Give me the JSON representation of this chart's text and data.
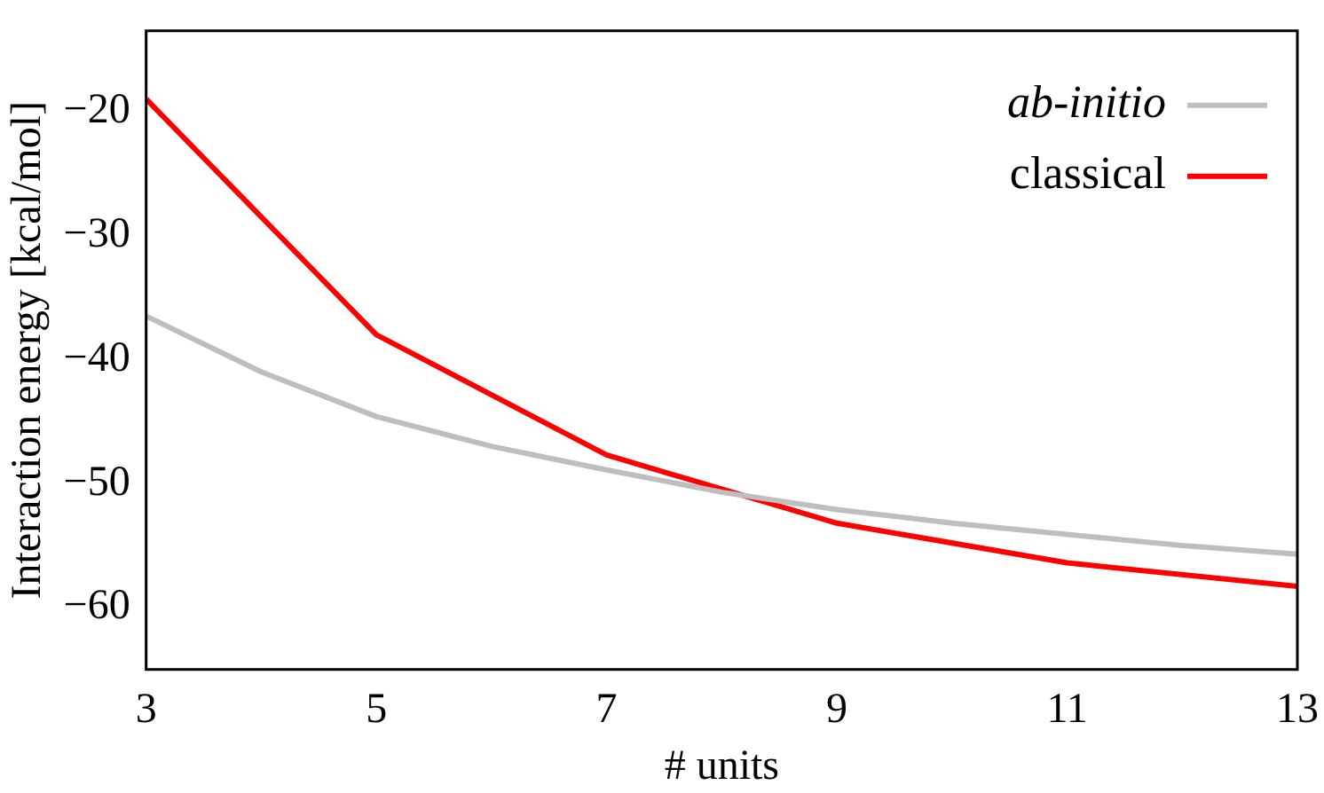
{
  "chart_data": {
    "type": "line",
    "xlabel": "# units",
    "ylabel": "Interaction energy [kcal/mol]",
    "xlim": [
      3,
      13
    ],
    "xticks": [
      3,
      5,
      7,
      9,
      11,
      13
    ],
    "ylim": [
      -65,
      -13.5
    ],
    "yticks": [
      {
        "value": -20,
        "label": "−20"
      },
      {
        "value": -30,
        "label": "−30"
      },
      {
        "value": -40,
        "label": "−40"
      },
      {
        "value": -50,
        "label": "−50"
      },
      {
        "value": -60,
        "label": "−60"
      }
    ],
    "grid": false,
    "legend": "top right",
    "marker": "none",
    "line_style": "solid",
    "series": [
      {
        "name": "ab-initio",
        "color": "#bebebe",
        "x": [
          3,
          4,
          5,
          6,
          7,
          8,
          9,
          10,
          11,
          12,
          13
        ],
        "values": [
          -36.5,
          -41,
          -44.6,
          -47,
          -48.9,
          -50.7,
          -52.1,
          -53.2,
          -54.1,
          -55,
          -55.7
        ]
      },
      {
        "name": "classical",
        "color": "#ff0000",
        "x": [
          3,
          5,
          7,
          9,
          11,
          13
        ],
        "values": [
          -19,
          -38,
          -47.7,
          -53.2,
          -56.4,
          -58.3
        ]
      }
    ]
  }
}
